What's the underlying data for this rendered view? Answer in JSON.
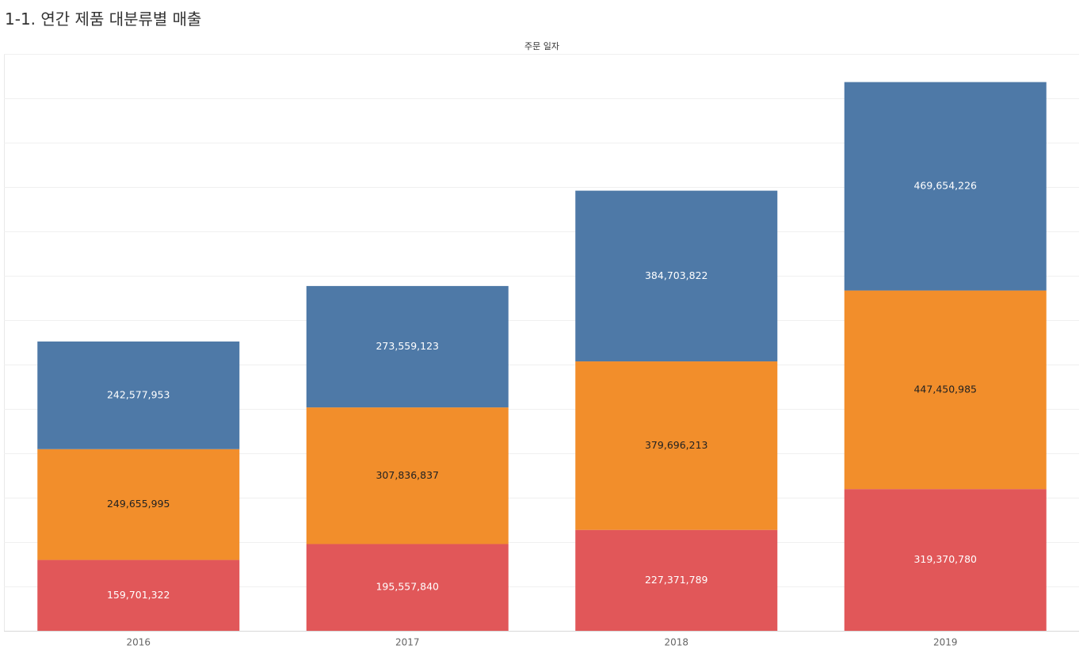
{
  "title": "1-1. 연간 제품 대분류별 매출",
  "chart_data": {
    "type": "bar",
    "stacked": true,
    "column_header": "주문 일자",
    "categories": [
      "2016",
      "2017",
      "2018",
      "2019"
    ],
    "series": [
      {
        "values": [
          159701322,
          195557840,
          227371789,
          319370780
        ],
        "labels": [
          "159,701,322",
          "195,557,840",
          "227,371,789",
          "319,370,780"
        ],
        "color": "#e15759",
        "label_color": "#ffffff"
      },
      {
        "values": [
          249655995,
          307836837,
          379696213,
          447450985
        ],
        "labels": [
          "249,655,995",
          "307,836,837",
          "379,696,213",
          "447,450,985"
        ],
        "color": "#f28e2b",
        "label_color": "#222222"
      },
      {
        "values": [
          242577953,
          273559123,
          384703822,
          469654226
        ],
        "labels": [
          "242,577,953",
          "273,559,123",
          "384,703,822",
          "469,654,226"
        ],
        "color": "#4e79a7",
        "label_color": "#ffffff"
      }
    ],
    "ylim": [
      0,
      1300000000
    ],
    "grid": true,
    "gridline_step": 100000000,
    "gridline_color": "#f0f0f0"
  }
}
